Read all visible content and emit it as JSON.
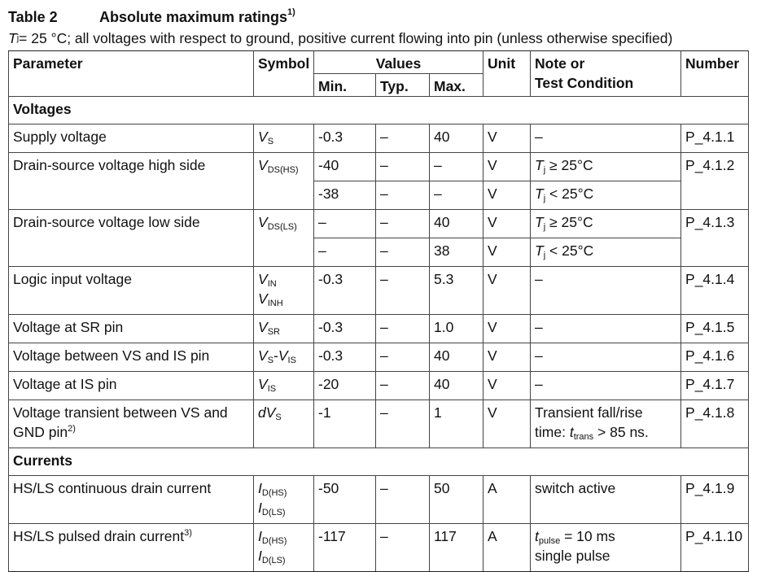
{
  "table": {
    "number": "Table 2",
    "title": "Absolute maximum ratings",
    "title_note": "1)",
    "condition_var": "T",
    "condition_sub": "j",
    "condition_rest": " = 25 °C; all voltages with respect to ground, positive current flowing into pin (unless otherwise specified)",
    "headers": {
      "parameter": "Parameter",
      "symbol": "Symbol",
      "values": "Values",
      "min": "Min.",
      "typ": "Typ.",
      "max": "Max.",
      "unit": "Unit",
      "note_line1": "Note or",
      "note_line2": "Test Condition",
      "number": "Number"
    },
    "sections": {
      "voltages": "Voltages",
      "currents": "Currents"
    },
    "rows": [
      {
        "param": "Supply voltage",
        "sym": "V",
        "sub": "S",
        "min": "-0.3",
        "typ": "–",
        "max": "40",
        "unit": "V",
        "note": "–",
        "num": "P_4.1.1"
      },
      {
        "param": "Drain-source voltage high side",
        "sym": "V",
        "sub": "DS(HS)",
        "min": "-40",
        "typ": "–",
        "max": "–",
        "unit": "V",
        "note_var": "T",
        "note_sub": "j",
        "note_rest": " ≥ 25°C",
        "min2": "-38",
        "typ2": "–",
        "max2": "–",
        "unit2": "V",
        "note2_var": "T",
        "note2_sub": "j",
        "note2_rest": " < 25°C",
        "num": "P_4.1.2"
      },
      {
        "param": "Drain-source voltage low side",
        "sym": "V",
        "sub": "DS(LS)",
        "min": "–",
        "typ": "–",
        "max": "40",
        "unit": "V",
        "note_var": "T",
        "note_sub": "j",
        "note_rest": " ≥ 25°C",
        "min2": "–",
        "typ2": "–",
        "max2": "38",
        "unit2": "V",
        "note2_var": "T",
        "note2_sub": "j",
        "note2_rest": " < 25°C",
        "num": "P_4.1.3"
      },
      {
        "param": "Logic input voltage",
        "sym": "V",
        "sub": "IN",
        "sym2": "V",
        "sub2": "INH",
        "min": "-0.3",
        "typ": "–",
        "max": "5.3",
        "unit": "V",
        "note": "–",
        "num": "P_4.1.4"
      },
      {
        "param": "Voltage at SR pin",
        "sym": "V",
        "sub": "SR",
        "min": "-0.3",
        "typ": "–",
        "max": "1.0",
        "unit": "V",
        "note": "–",
        "num": "P_4.1.5"
      },
      {
        "param": "Voltage between VS and IS pin",
        "sym": "V",
        "sub": "S",
        "sym_mid": "-",
        "sym_b": "V",
        "sub_b": "IS",
        "min": "-0.3",
        "typ": "–",
        "max": "40",
        "unit": "V",
        "note": "–",
        "num": "P_4.1.6"
      },
      {
        "param": "Voltage at IS pin",
        "sym": "V",
        "sub": "IS",
        "min": "-20",
        "typ": "–",
        "max": "40",
        "unit": "V",
        "note": "–",
        "num": "P_4.1.7"
      },
      {
        "param_line1": "Voltage transient between VS and",
        "param_line2": "GND pin",
        "param_note": "2)",
        "sym_prefix": "dV",
        "sub": "S",
        "min": "-1",
        "typ": "–",
        "max": "1",
        "unit": "V",
        "note_line1": "Transient fall/rise",
        "note_line2_a": "time: ",
        "note_line2_var": "t",
        "note_line2_sub": "trans",
        "note_line2_rest": " > 85 ns.",
        "num": "P_4.1.8"
      },
      {
        "param": "HS/LS continuous drain current",
        "sym": "I",
        "sub": "D(HS)",
        "sym2": "I",
        "sub2": "D(LS)",
        "min": "-50",
        "typ": "–",
        "max": "50",
        "unit": "A",
        "note": "switch active",
        "num": "P_4.1.9"
      },
      {
        "param": "HS/LS pulsed drain current",
        "param_note": "3)",
        "sym": "I",
        "sub": "D(HS)",
        "sym2": "I",
        "sub2": "D(LS)",
        "min": "-117",
        "typ": "–",
        "max": "117",
        "unit": "A",
        "note_var": "t",
        "note_sub": "pulse",
        "note_rest": " = 10 ms",
        "note_line2": "single pulse",
        "num": "P_4.1.10"
      }
    ]
  }
}
